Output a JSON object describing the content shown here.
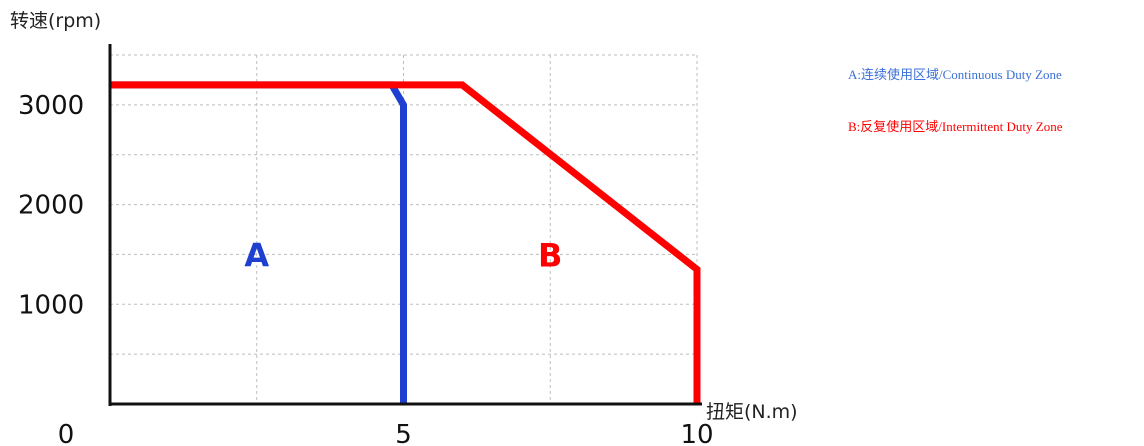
{
  "chart_data": {
    "type": "line",
    "ylabel": "转速(rpm)",
    "xlabel": "扭矩(N.m)",
    "xlim": [
      0,
      10
    ],
    "ylim": [
      0,
      3500
    ],
    "x_ticks": [
      0,
      5,
      10
    ],
    "y_ticks": [
      1000,
      2000,
      3000
    ],
    "grid": true,
    "series": [
      {
        "name": "A:连续使用区域/Continuous Duty Zone",
        "color": "#1f3fd1",
        "points": [
          [
            0,
            3200
          ],
          [
            4.8,
            3200
          ],
          [
            5,
            3000
          ],
          [
            5,
            0
          ]
        ]
      },
      {
        "name": "B:反复使用区域/Intermittent Duty Zone",
        "color": "#ff0000",
        "points": [
          [
            0,
            3200
          ],
          [
            6,
            3200
          ],
          [
            10,
            1350
          ],
          [
            10,
            0
          ]
        ]
      }
    ],
    "region_labels": [
      {
        "text": "A",
        "x": 2.5,
        "y": 1500,
        "color": "#1f3fd1"
      },
      {
        "text": "B",
        "x": 7.5,
        "y": 1500,
        "color": "#ff0000"
      }
    ],
    "legend": {
      "placement": "right",
      "entries": [
        {
          "text": "A:连续使用区域/Continuous Duty Zone",
          "color": "#3b6fd8"
        },
        {
          "text": "B:反复使用区域/Intermittent Duty Zone",
          "color": "#ff0000"
        }
      ]
    }
  }
}
